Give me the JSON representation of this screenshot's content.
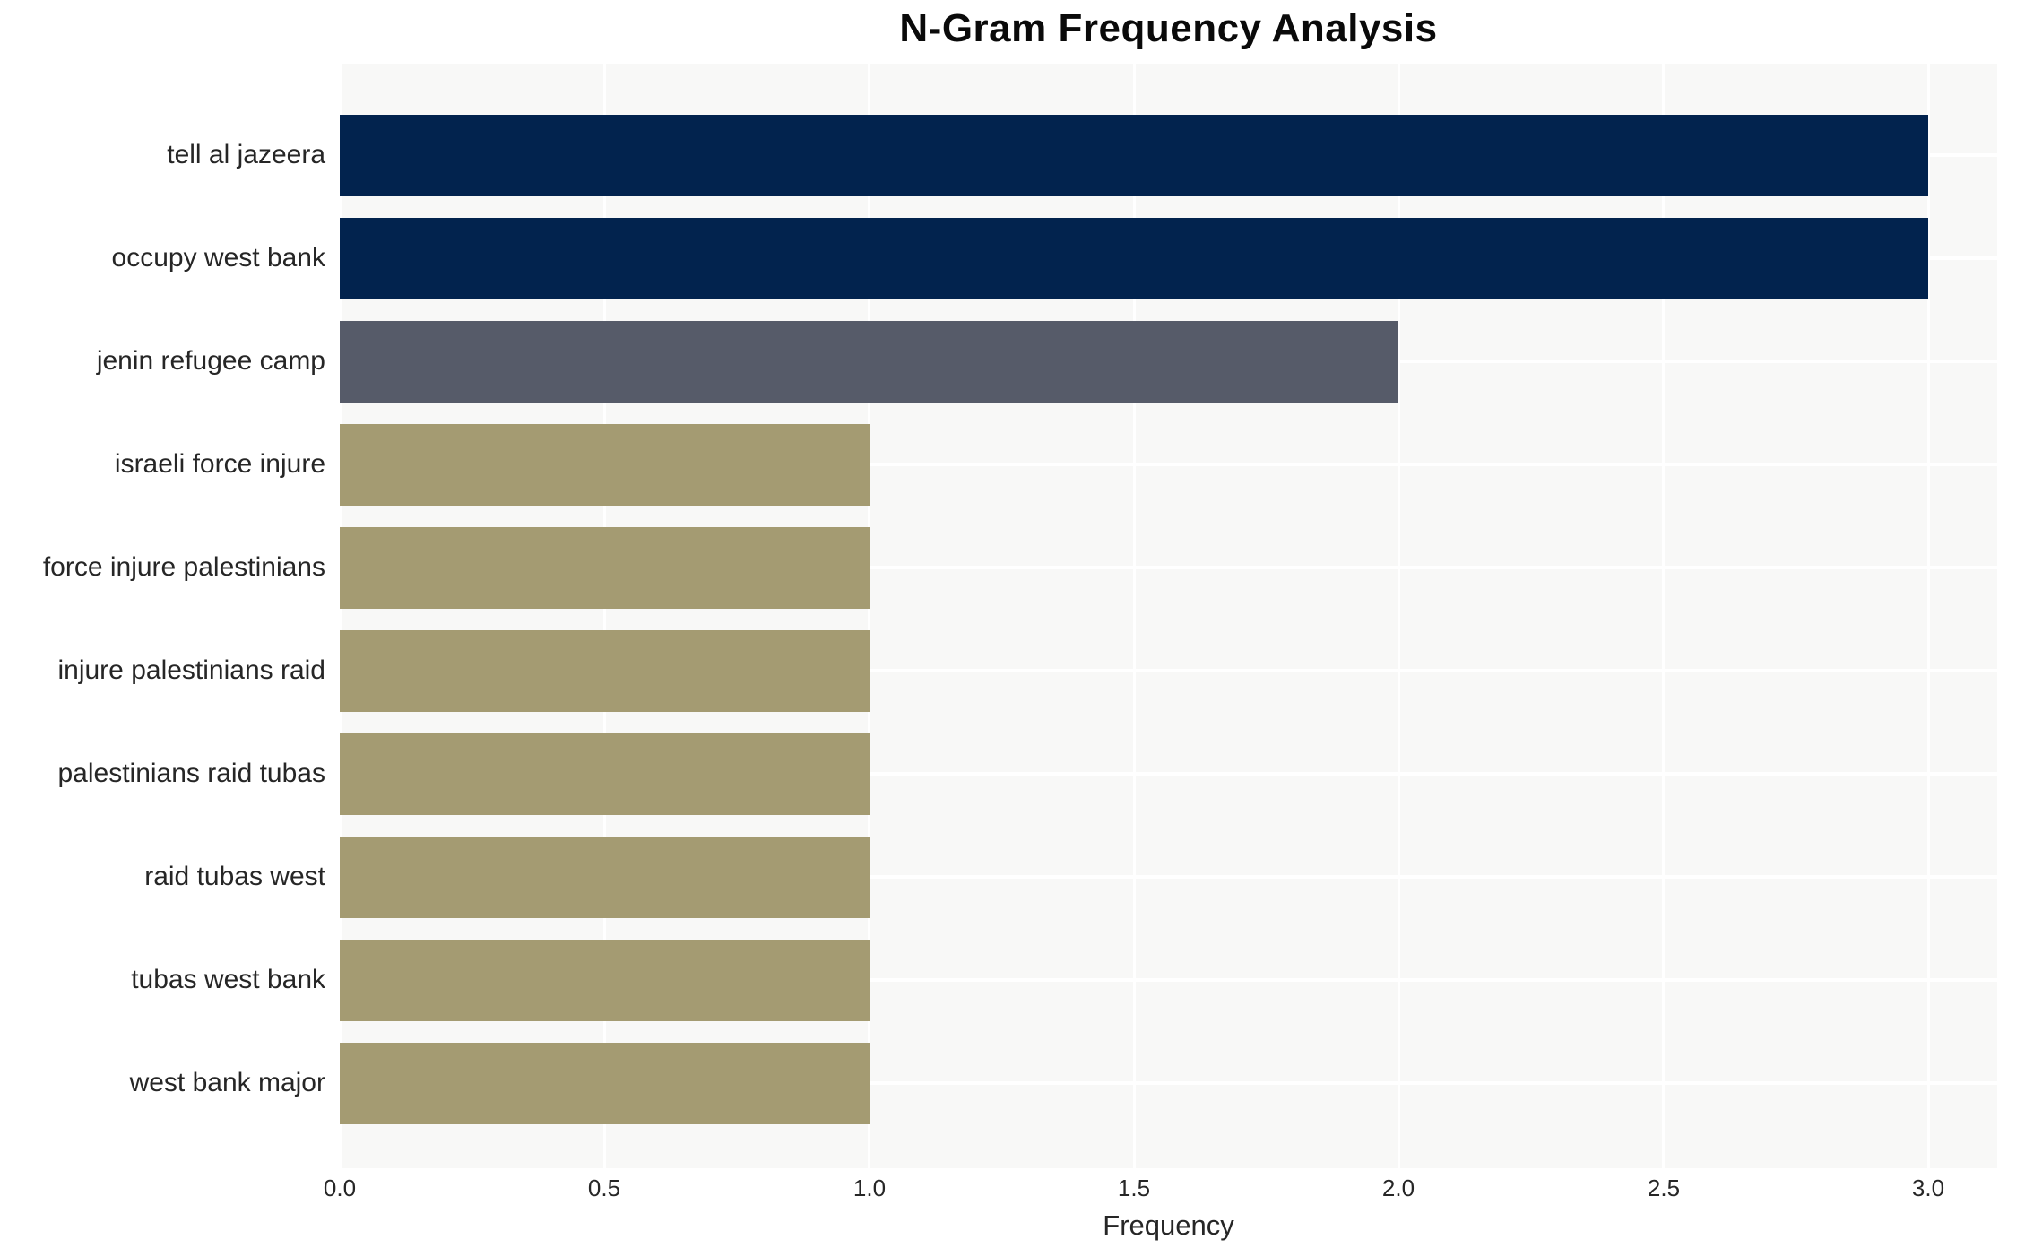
{
  "chart_data": {
    "type": "bar",
    "orientation": "horizontal",
    "title": "N-Gram Frequency Analysis",
    "xlabel": "Frequency",
    "ylabel": "",
    "categories": [
      "tell al jazeera",
      "occupy west bank",
      "jenin refugee camp",
      "israeli force injure",
      "force injure palestinians",
      "injure palestinians raid",
      "palestinians raid tubas",
      "raid tubas west",
      "tubas west bank",
      "west bank major"
    ],
    "values": [
      3.0,
      3.0,
      2.0,
      1.0,
      1.0,
      1.0,
      1.0,
      1.0,
      1.0,
      1.0
    ],
    "bar_colors": [
      "#02234e",
      "#02234e",
      "#565b69",
      "#a49b72",
      "#a49b72",
      "#a49b72",
      "#a49b72",
      "#a49b72",
      "#a49b72",
      "#a49b72"
    ],
    "xticks": [
      "0.0",
      "0.5",
      "1.0",
      "1.5",
      "2.0",
      "2.5",
      "3.0"
    ],
    "xtick_values": [
      0,
      0.5,
      1.0,
      1.5,
      2.0,
      2.5,
      3.0
    ],
    "xlim": [
      0,
      3.13
    ],
    "grid": true,
    "legend_visible": false,
    "colors": {
      "page_background": "#ffffff",
      "plot_background": "#f8f8f7",
      "gridline": "#ffffff",
      "tick_text": "#262626",
      "title_text": "#0a0a0a"
    }
  }
}
